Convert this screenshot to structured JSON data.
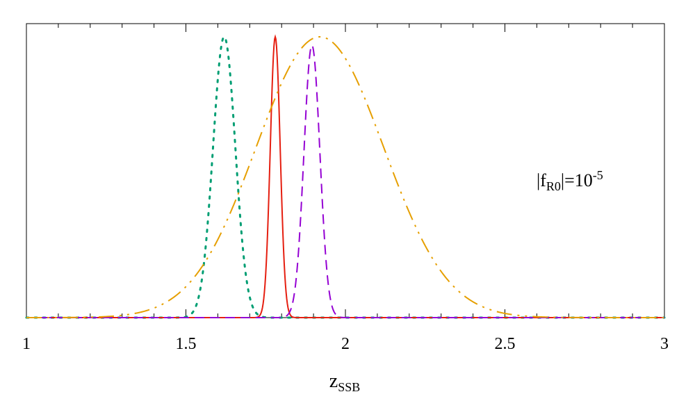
{
  "chart_data": {
    "type": "line",
    "xlabel": {
      "main": "z",
      "sub": "SSB"
    },
    "ylabel": "",
    "xlim": [
      1,
      3
    ],
    "ylim": [
      0,
      1.05
    ],
    "x_ticks": [
      "1",
      "1.5",
      "2",
      "2.5",
      "3"
    ],
    "y_tick_labels_shown": false,
    "grid": false,
    "legend": "none",
    "annotation": {
      "prefix": "|f",
      "sub": "R0",
      "middle": "|=10",
      "sup": "-5"
    },
    "series": [
      {
        "style": "dotted",
        "color": "#009e73",
        "peak_x": 1.62,
        "width": 0.035,
        "peak_y": 1.0
      },
      {
        "style": "solid",
        "color": "#e51e10",
        "peak_x": 1.78,
        "width": 0.0155,
        "peak_y": 1.0
      },
      {
        "style": "dashed",
        "color": "#9400d3",
        "peak_x": 1.895,
        "width": 0.025,
        "peak_y": 0.97
      },
      {
        "style": "dash-dot-dot",
        "color": "#e69f00",
        "peak_x": 1.92,
        "width": 0.2,
        "peak_y": 1.0
      }
    ]
  }
}
